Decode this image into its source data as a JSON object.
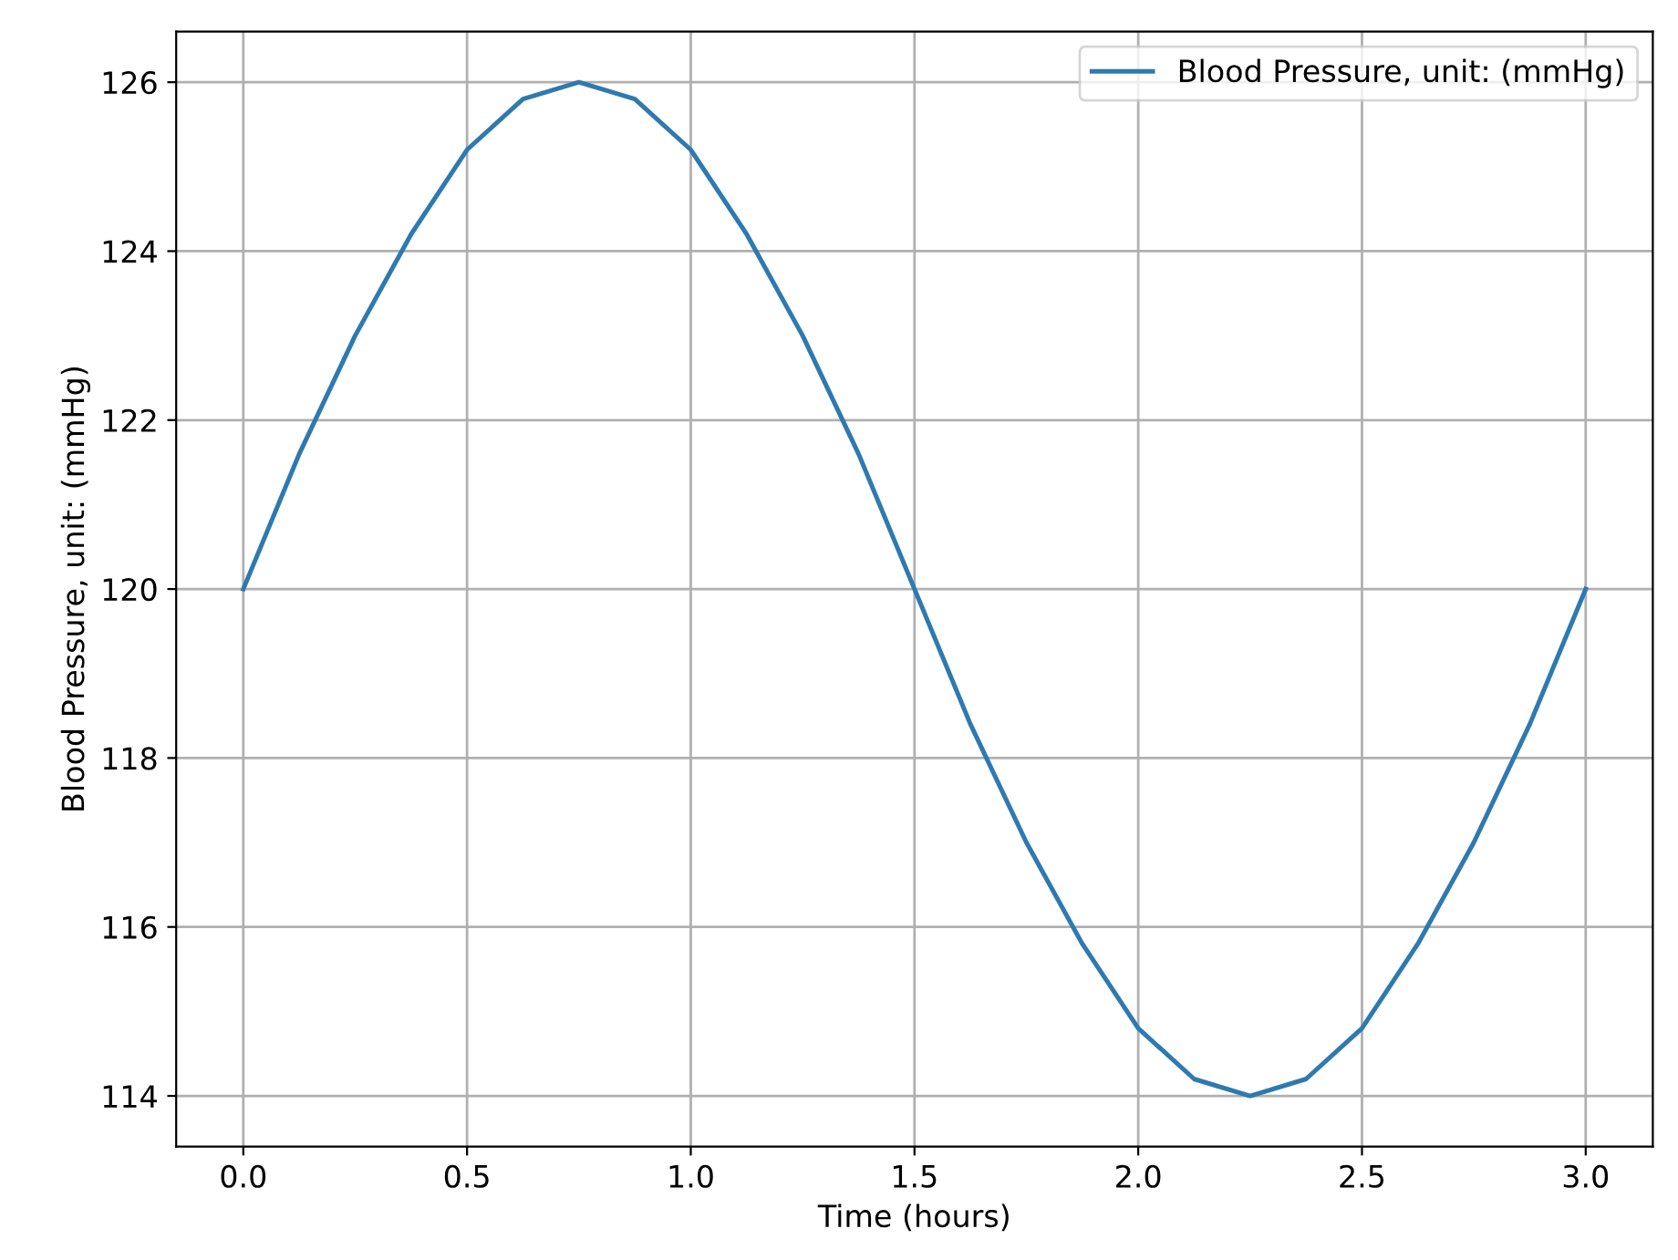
{
  "chart_data": {
    "type": "line",
    "xlabel": "Time (hours)",
    "ylabel": "Blood Pressure, unit: (mmHg)",
    "x": [
      0,
      0.125,
      0.25,
      0.375,
      0.5,
      0.625,
      0.75,
      0.875,
      1.0,
      1.125,
      1.25,
      1.375,
      1.5,
      1.625,
      1.75,
      1.875,
      2.0,
      2.125,
      2.25,
      2.375,
      2.5,
      2.625,
      2.75,
      2.875,
      3.0
    ],
    "series": [
      {
        "name": "Blood Pressure, unit: (mmHg)",
        "color": "#2e7ab0",
        "values": [
          120,
          121.6,
          123,
          124.2,
          125.2,
          125.8,
          126,
          125.8,
          125.2,
          124.2,
          123,
          121.6,
          120,
          118.4,
          117,
          115.8,
          114.8,
          114.2,
          114,
          114.2,
          114.8,
          115.8,
          117,
          118.4,
          120
        ]
      }
    ],
    "xlim": [
      -0.15,
      3.15
    ],
    "ylim": [
      113.4,
      126.6
    ],
    "xticks": [
      {
        "value": 0,
        "label": "0.0"
      },
      {
        "value": 0.5,
        "label": "0.5"
      },
      {
        "value": 1,
        "label": "1.0"
      },
      {
        "value": 1.5,
        "label": "1.5"
      },
      {
        "value": 2,
        "label": "2.0"
      },
      {
        "value": 2.5,
        "label": "2.5"
      },
      {
        "value": 3,
        "label": "3.0"
      }
    ],
    "yticks": [
      114,
      116,
      118,
      120,
      122,
      124,
      126
    ],
    "grid": true,
    "legend": "top right"
  }
}
